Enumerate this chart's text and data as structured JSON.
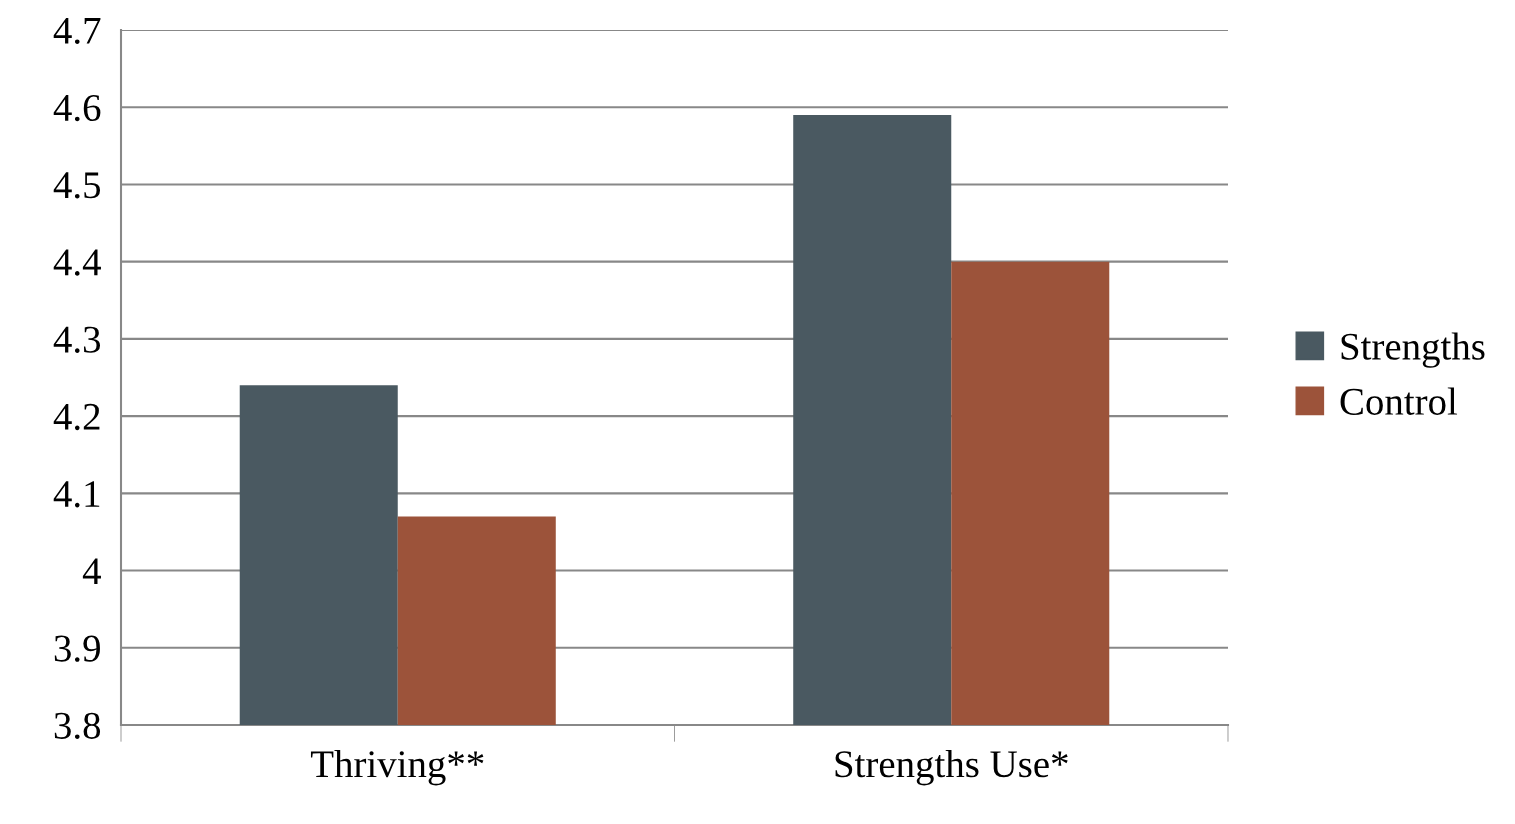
{
  "chart_data": {
    "type": "bar",
    "categories": [
      "Thriving**",
      "Strengths Use*"
    ],
    "series": [
      {
        "name": "Strengths",
        "color": "#4a5961",
        "values": [
          4.24,
          4.59
        ]
      },
      {
        "name": "Control",
        "color": "#9c533a",
        "values": [
          4.07,
          4.4
        ]
      }
    ],
    "ylim": [
      3.8,
      4.7
    ],
    "yticks": [
      3.8,
      3.9,
      4,
      4.1,
      4.2,
      4.3,
      4.4,
      4.5,
      4.6,
      4.7
    ],
    "grid": "y",
    "legend": "right"
  }
}
